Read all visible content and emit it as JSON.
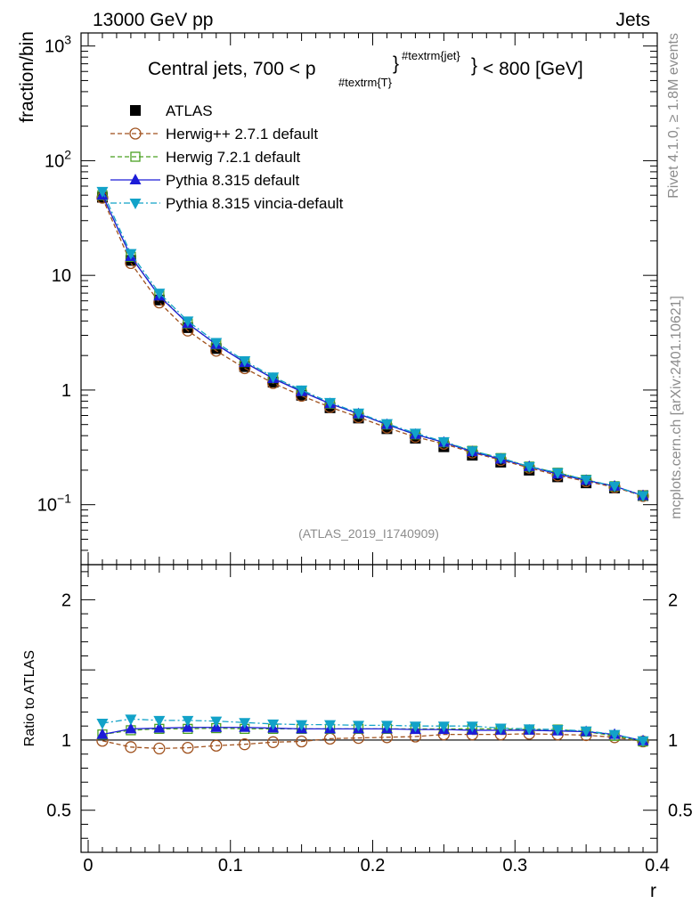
{
  "header": {
    "left": "13000 GeV pp",
    "right": "Jets"
  },
  "side_labels": {
    "rivet": "Rivet 4.1.0, ≥ 1.8M events",
    "mcplots": "mcplots.cern.ch [arXiv:2401.10621]"
  },
  "chart_data": [
    {
      "type": "line",
      "panel": "main",
      "title": "Central jets, 700 < p_{#textrm{T}}^{#textrm{jet}} < 800 [GeV]",
      "title_parts": {
        "prefix": "Central jets, 700 < p",
        "subscript": "#textrm{T}",
        "superscript": "#textrm{jet}",
        "suffix": "< 800 [GeV]"
      },
      "xlabel": "r",
      "ylabel": "fraction/bin",
      "yscale": "log",
      "xlim": [
        -0.005,
        0.4
      ],
      "ylim": [
        0.03,
        1300
      ],
      "y_ticks": [
        {
          "value": 0.1,
          "label": "10",
          "exp": "−1"
        },
        {
          "value": 1,
          "label": "1",
          "exp": ""
        },
        {
          "value": 10,
          "label": "10",
          "exp": ""
        },
        {
          "value": 100,
          "label": "10",
          "exp": "2"
        },
        {
          "value": 1000,
          "label": "10",
          "exp": "3"
        }
      ],
      "watermark": "(ATLAS_2019_I1740909)",
      "x": [
        0.01,
        0.03,
        0.05,
        0.07,
        0.09,
        0.11,
        0.13,
        0.15,
        0.17,
        0.19,
        0.21,
        0.23,
        0.25,
        0.27,
        0.29,
        0.31,
        0.33,
        0.35,
        0.37,
        0.39
      ],
      "series": [
        {
          "name": "ATLAS",
          "color": "#000000",
          "marker": "square-filled",
          "line": "none",
          "values": [
            48,
            13.5,
            6.1,
            3.5,
            2.3,
            1.6,
            1.17,
            0.9,
            0.7,
            0.57,
            0.46,
            0.38,
            0.32,
            0.27,
            0.235,
            0.2,
            0.175,
            0.155,
            0.14,
            0.12
          ]
        },
        {
          "name": "Herwig++ 2.7.1 default",
          "color": "#a0521e",
          "marker": "circle-open",
          "line": "dashed",
          "values": [
            47.5,
            12.8,
            5.8,
            3.3,
            2.2,
            1.55,
            1.15,
            0.89,
            0.71,
            0.58,
            0.47,
            0.39,
            0.34,
            0.285,
            0.245,
            0.21,
            0.18,
            0.16,
            0.142,
            0.119
          ]
        },
        {
          "name": "Herwig 7.2.1 default",
          "color": "#4aa022",
          "marker": "square-open",
          "line": "dashed",
          "values": [
            50,
            14.5,
            6.7,
            3.8,
            2.5,
            1.75,
            1.27,
            0.98,
            0.76,
            0.62,
            0.5,
            0.41,
            0.35,
            0.295,
            0.255,
            0.215,
            0.19,
            0.165,
            0.145,
            0.12
          ]
        },
        {
          "name": "Pythia 8.315 default",
          "color": "#1c1cd8",
          "marker": "triangle-up-filled",
          "line": "solid",
          "values": [
            50,
            14.6,
            6.6,
            3.8,
            2.5,
            1.74,
            1.26,
            0.97,
            0.76,
            0.62,
            0.5,
            0.41,
            0.35,
            0.29,
            0.25,
            0.215,
            0.185,
            0.163,
            0.145,
            0.12
          ]
        },
        {
          "name": "Pythia 8.315 vincia-default",
          "color": "#12a2c8",
          "marker": "triangle-down-filled",
          "line": "dashdot",
          "values": [
            54,
            15.5,
            7.0,
            4.0,
            2.6,
            1.8,
            1.3,
            1.0,
            0.78,
            0.63,
            0.51,
            0.42,
            0.355,
            0.295,
            0.255,
            0.215,
            0.19,
            0.165,
            0.145,
            0.12
          ]
        }
      ]
    },
    {
      "type": "line",
      "panel": "ratio",
      "xlabel": "r",
      "ylabel": "Ratio to ATLAS",
      "xlim": [
        -0.005,
        0.4
      ],
      "ylim": [
        0.2,
        2.25
      ],
      "x_ticks": [
        0,
        0.1,
        0.2,
        0.3,
        0.4
      ],
      "x_tick_labels": [
        "0",
        "0.1",
        "0.2",
        "0.3",
        "0.4"
      ],
      "y_ticks": [
        0.5,
        1,
        2
      ],
      "y_tick_labels": [
        "0.5",
        "1",
        "2"
      ],
      "reference_line": 1,
      "x": [
        0.01,
        0.03,
        0.05,
        0.07,
        0.09,
        0.11,
        0.13,
        0.15,
        0.17,
        0.19,
        0.21,
        0.23,
        0.25,
        0.27,
        0.29,
        0.31,
        0.33,
        0.35,
        0.37,
        0.39
      ],
      "series": [
        {
          "name": "Herwig++ 2.7.1 default",
          "color": "#a0521e",
          "marker": "circle-open",
          "line": "dashed",
          "values": [
            0.995,
            0.95,
            0.94,
            0.945,
            0.96,
            0.97,
            0.985,
            0.99,
            1.01,
            1.015,
            1.02,
            1.025,
            1.04,
            1.04,
            1.04,
            1.045,
            1.04,
            1.035,
            1.02,
            0.99
          ]
        },
        {
          "name": "Herwig 7.2.1 default",
          "color": "#4aa022",
          "marker": "square-open",
          "line": "dashed",
          "values": [
            1.04,
            1.07,
            1.08,
            1.08,
            1.085,
            1.08,
            1.08,
            1.08,
            1.08,
            1.08,
            1.08,
            1.08,
            1.08,
            1.08,
            1.08,
            1.075,
            1.075,
            1.06,
            1.03,
            0.99
          ]
        },
        {
          "name": "Pythia 8.315 default",
          "color": "#1c1cd8",
          "marker": "triangle-up-filled",
          "line": "solid",
          "values": [
            1.04,
            1.08,
            1.085,
            1.09,
            1.09,
            1.09,
            1.085,
            1.08,
            1.08,
            1.08,
            1.08,
            1.075,
            1.075,
            1.07,
            1.07,
            1.07,
            1.065,
            1.06,
            1.04,
            0.995
          ]
        },
        {
          "name": "Pythia 8.315 vincia-default",
          "color": "#12a2c8",
          "marker": "triangle-down-filled",
          "line": "dashdot",
          "values": [
            1.12,
            1.15,
            1.14,
            1.14,
            1.135,
            1.125,
            1.115,
            1.11,
            1.11,
            1.105,
            1.105,
            1.1,
            1.1,
            1.1,
            1.085,
            1.08,
            1.075,
            1.065,
            1.04,
            0.995
          ]
        }
      ]
    }
  ]
}
